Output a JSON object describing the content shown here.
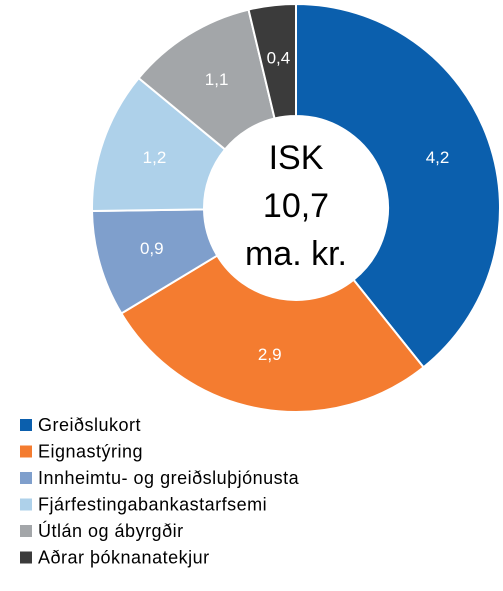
{
  "chart_data": {
    "type": "donut",
    "center_text": [
      "ISK",
      "10,7",
      "ma. kr."
    ],
    "categories": [
      "Greiðslukort",
      "Eignastýring",
      "Innheimtu- og greiðsluþjónusta",
      "Fjárfestingabankastarfsemi",
      "Útlán og ábyrgðir",
      "Aðrar þóknanatekjur"
    ],
    "values": [
      4.2,
      2.9,
      0.9,
      1.2,
      1.1,
      0.4
    ],
    "value_labels": [
      "4,2",
      "2,9",
      "0,9",
      "1,2",
      "1,1",
      "0,4"
    ],
    "colors": [
      "#0b5fad",
      "#f47c30",
      "#7f9fcc",
      "#aed1ea",
      "#a3a6a9",
      "#3b3b3b"
    ],
    "legend": "bottom-left"
  }
}
